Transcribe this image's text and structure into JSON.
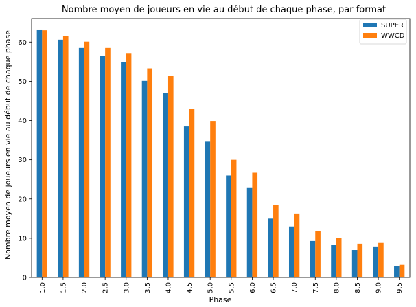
{
  "chart_data": {
    "type": "bar",
    "title": "Nombre moyen de joueurs en vie au début de chaque phase, par format",
    "xlabel": "Phase",
    "ylabel": "Nombre moyen de joueurs en vie au début de chaque phase",
    "categories": [
      "1.0",
      "1.5",
      "2.0",
      "2.5",
      "3.0",
      "3.5",
      "4.0",
      "4.5",
      "5.0",
      "5.5",
      "6.0",
      "6.5",
      "7.0",
      "7.5",
      "8.0",
      "8.5",
      "9.0",
      "9.5"
    ],
    "series": [
      {
        "name": "SUPER",
        "color": "#1f77b4",
        "values": [
          63.2,
          60.6,
          58.5,
          56.4,
          54.9,
          50.1,
          47.0,
          38.5,
          34.6,
          26.0,
          22.8,
          15.0,
          13.0,
          9.3,
          8.4,
          7.0,
          7.9,
          2.8
        ]
      },
      {
        "name": "WWCD",
        "color": "#ff7f0e",
        "values": [
          63.0,
          61.5,
          60.1,
          58.5,
          57.2,
          53.3,
          51.3,
          43.0,
          39.9,
          30.0,
          26.7,
          18.5,
          16.3,
          11.9,
          10.0,
          8.6,
          8.8,
          3.2
        ]
      }
    ],
    "ylim": [
      0,
      66
    ],
    "yticks": [
      0,
      10,
      20,
      30,
      40,
      50,
      60
    ],
    "legend_position": "top-right",
    "grid": false
  }
}
